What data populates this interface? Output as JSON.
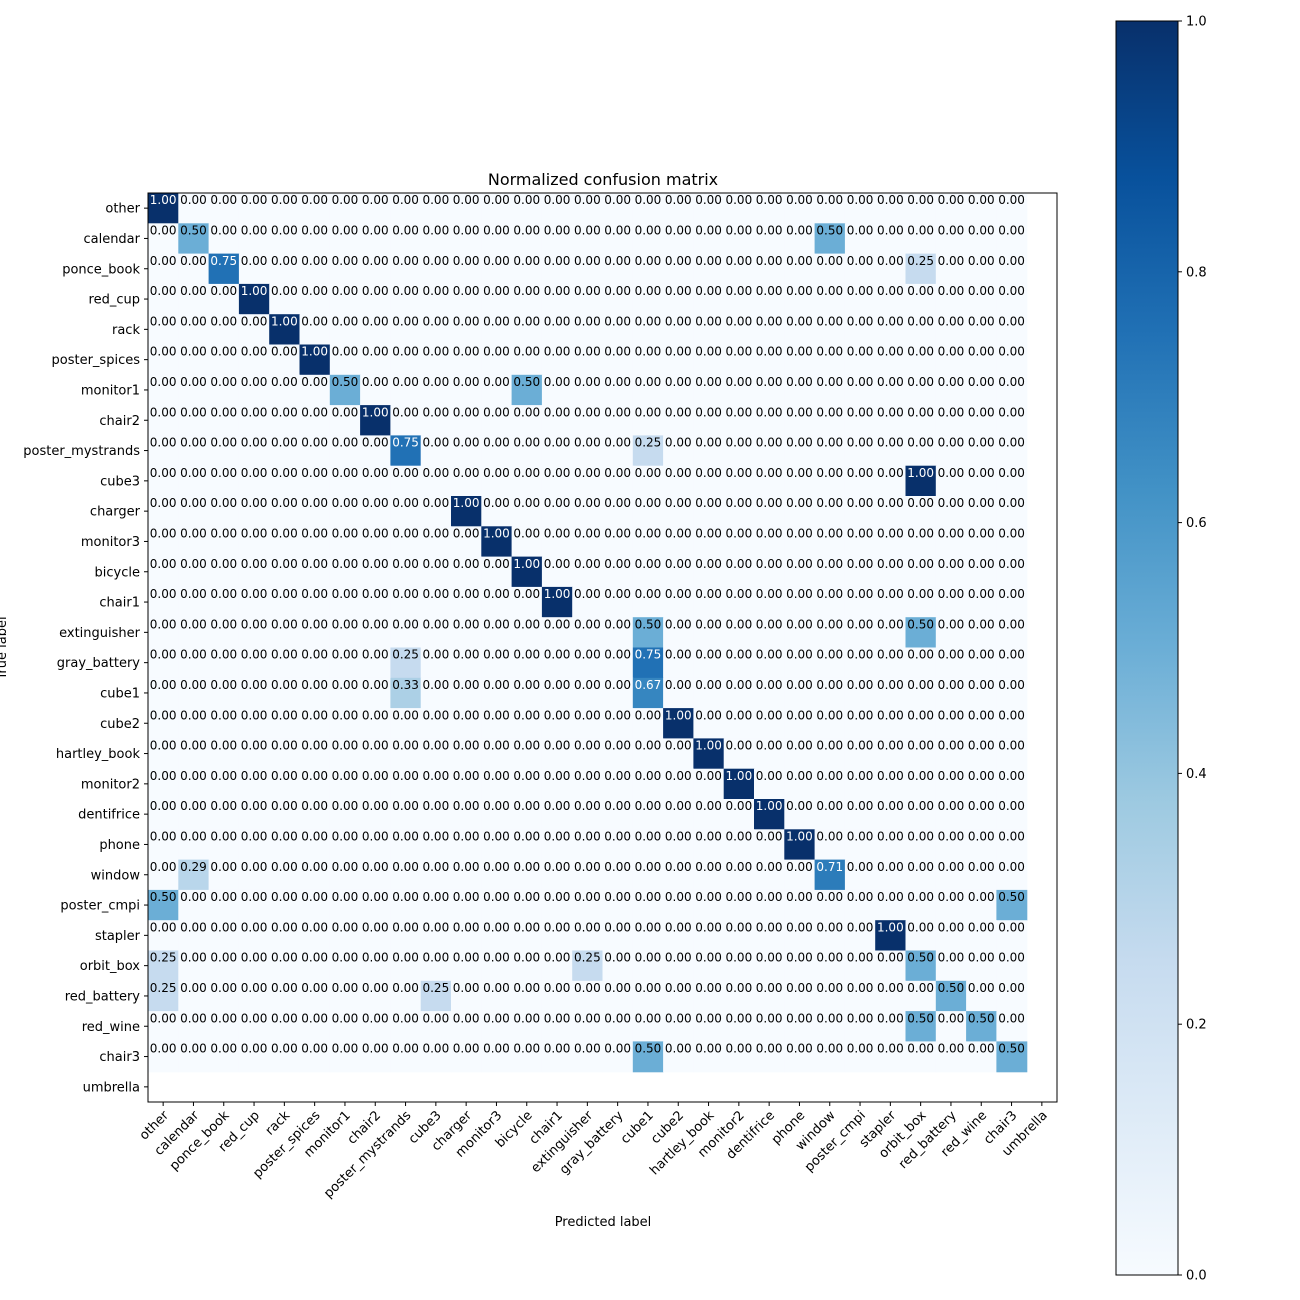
{
  "chart_data": {
    "type": "heatmap",
    "title": "Normalized confusion matrix",
    "xlabel": "Predicted label",
    "ylabel": "True label",
    "labels": [
      "other",
      "calendar",
      "ponce_book",
      "red_cup",
      "rack",
      "poster_spices",
      "monitor1",
      "chair2",
      "poster_mystrands",
      "cube3",
      "charger",
      "monitor3",
      "bicycle",
      "chair1",
      "extinguisher",
      "gray_battery",
      "cube1",
      "cube2",
      "hartley_book",
      "monitor2",
      "dentifrice",
      "phone",
      "window",
      "poster_cmpi",
      "stapler",
      "orbit_box",
      "red_battery",
      "red_wine",
      "chair3",
      "umbrella"
    ],
    "x_tick_labels": [
      "other",
      "calendar",
      "ponce_book",
      "red_cup",
      "rack",
      "poster_spices",
      "monitor1",
      "chair2",
      "poster_mystrands",
      "cube3",
      "charger",
      "monitor3",
      "bicycle",
      "chair1",
      "extinguisher",
      "gray_battery",
      "cube1",
      "cube2",
      "hartley_book",
      "monitor2",
      "dentifrice",
      "phone",
      "window",
      "poster_cmpi",
      "stapler",
      "orbit_box",
      "red_battery",
      "red_wine",
      "chair3",
      "umbrella"
    ],
    "y_tick_labels": [
      "other",
      "calendar",
      "ponce_book",
      "red_cup",
      "rack",
      "poster_spices",
      "monitor1",
      "chair2",
      "poster_mystrands",
      "cube3",
      "charger",
      "monitor3",
      "bicycle",
      "chair1",
      "extinguisher",
      "gray_battery",
      "cube1",
      "cube2",
      "hartley_book",
      "monitor2",
      "dentifrice",
      "phone",
      "window",
      "poster_cmpi",
      "stapler",
      "orbit_box",
      "red_battery",
      "red_wine",
      "chair3",
      "umbrella"
    ],
    "n_rows_shown": 29,
    "n_cols_shown": 29,
    "nonzero_cells": [
      {
        "row": 0,
        "col": 0,
        "value": 1.0
      },
      {
        "row": 1,
        "col": 1,
        "value": 0.5
      },
      {
        "row": 1,
        "col": 22,
        "value": 0.5
      },
      {
        "row": 2,
        "col": 2,
        "value": 0.75
      },
      {
        "row": 2,
        "col": 25,
        "value": 0.25
      },
      {
        "row": 3,
        "col": 3,
        "value": 1.0
      },
      {
        "row": 4,
        "col": 4,
        "value": 1.0
      },
      {
        "row": 5,
        "col": 5,
        "value": 1.0
      },
      {
        "row": 6,
        "col": 6,
        "value": 0.5
      },
      {
        "row": 6,
        "col": 12,
        "value": 0.5
      },
      {
        "row": 7,
        "col": 7,
        "value": 1.0
      },
      {
        "row": 8,
        "col": 8,
        "value": 0.75
      },
      {
        "row": 8,
        "col": 16,
        "value": 0.25
      },
      {
        "row": 9,
        "col": 25,
        "value": 1.0
      },
      {
        "row": 10,
        "col": 10,
        "value": 1.0
      },
      {
        "row": 11,
        "col": 11,
        "value": 1.0
      },
      {
        "row": 12,
        "col": 12,
        "value": 1.0
      },
      {
        "row": 13,
        "col": 13,
        "value": 1.0
      },
      {
        "row": 14,
        "col": 16,
        "value": 0.5
      },
      {
        "row": 14,
        "col": 25,
        "value": 0.5
      },
      {
        "row": 15,
        "col": 8,
        "value": 0.25
      },
      {
        "row": 15,
        "col": 16,
        "value": 0.75
      },
      {
        "row": 16,
        "col": 8,
        "value": 0.33
      },
      {
        "row": 16,
        "col": 16,
        "value": 0.67
      },
      {
        "row": 17,
        "col": 17,
        "value": 1.0
      },
      {
        "row": 18,
        "col": 18,
        "value": 1.0
      },
      {
        "row": 19,
        "col": 19,
        "value": 1.0
      },
      {
        "row": 20,
        "col": 20,
        "value": 1.0
      },
      {
        "row": 21,
        "col": 21,
        "value": 1.0
      },
      {
        "row": 22,
        "col": 1,
        "value": 0.29
      },
      {
        "row": 22,
        "col": 22,
        "value": 0.71
      },
      {
        "row": 23,
        "col": 0,
        "value": 0.5
      },
      {
        "row": 23,
        "col": 28,
        "value": 0.5
      },
      {
        "row": 24,
        "col": 24,
        "value": 1.0
      },
      {
        "row": 25,
        "col": 0,
        "value": 0.25
      },
      {
        "row": 25,
        "col": 14,
        "value": 0.25
      },
      {
        "row": 25,
        "col": 25,
        "value": 0.5
      },
      {
        "row": 26,
        "col": 0,
        "value": 0.25
      },
      {
        "row": 26,
        "col": 9,
        "value": 0.25
      },
      {
        "row": 26,
        "col": 26,
        "value": 0.5
      },
      {
        "row": 27,
        "col": 25,
        "value": 0.5
      },
      {
        "row": 27,
        "col": 27,
        "value": 0.5
      },
      {
        "row": 28,
        "col": 16,
        "value": 0.5
      },
      {
        "row": 28,
        "col": 28,
        "value": 0.5
      }
    ],
    "value_format": "2 decimals",
    "zero_text": "0.00",
    "colormap": "Blues",
    "vmin": 0.0,
    "vmax": 1.0,
    "colorbar_ticks": [
      "0.0",
      "0.2",
      "0.4",
      "0.6",
      "0.8",
      "1.0"
    ],
    "colorbar_tick_values": [
      0.0,
      0.2,
      0.4,
      0.6,
      0.8,
      1.0
    ],
    "text_color_light": "#ffffff",
    "text_color_dark": "#000000",
    "text_threshold": 0.5
  }
}
